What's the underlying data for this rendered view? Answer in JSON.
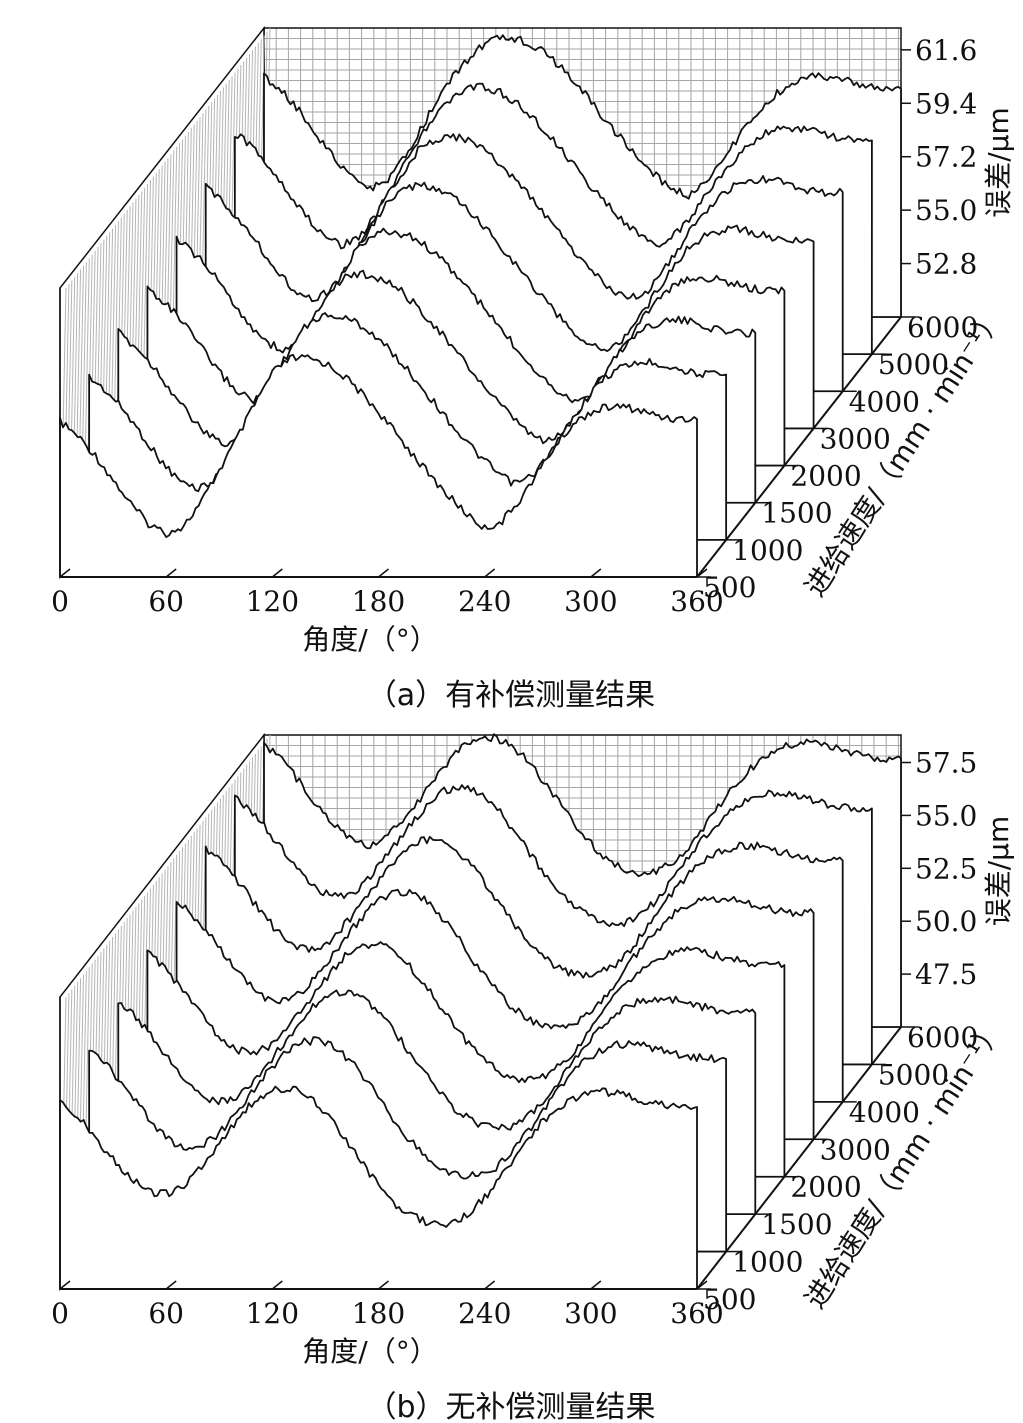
{
  "chart_data": [
    {
      "type": "line",
      "chart_style": "3d-waterfall",
      "caption": "（a）有补偿测量结果",
      "xlabel": "角度/（°）",
      "ylabel": "误差/μm",
      "zlabel": "进给速度/（mm · min⁻¹）",
      "x_ticks": [
        "0",
        "60",
        "120",
        "180",
        "240",
        "300",
        "360"
      ],
      "y_ticks": [
        "52.8",
        "55.0",
        "57.2",
        "59.4",
        "61.6"
      ],
      "z_ticks": [
        "500",
        "1000",
        "1500",
        "2000",
        "3000",
        "4000",
        "5000",
        "6000"
      ],
      "xlim": [
        0,
        360
      ],
      "ylim": [
        50.6,
        62.5
      ],
      "x": [
        0,
        10,
        20,
        30,
        40,
        50,
        60,
        70,
        80,
        90,
        100,
        110,
        120,
        130,
        140,
        150,
        160,
        170,
        180,
        190,
        200,
        210,
        220,
        230,
        240,
        250,
        260,
        270,
        280,
        290,
        300,
        310,
        320,
        330,
        340,
        350,
        360
      ],
      "series": [
        {
          "name": "500",
          "values": [
            57.0,
            56.4,
            55.6,
            54.6,
            53.6,
            52.8,
            52.4,
            52.7,
            53.7,
            55.0,
            56.3,
            57.7,
            59.0,
            59.6,
            59.6,
            59.4,
            58.9,
            58.2,
            57.4,
            56.5,
            55.6,
            54.7,
            53.9,
            53.2,
            52.6,
            52.9,
            53.8,
            54.9,
            56.0,
            56.9,
            57.4,
            57.6,
            57.6,
            57.4,
            57.2,
            57.1,
            57.1
          ]
        },
        {
          "name": "1000",
          "values": [
            57.3,
            56.7,
            55.9,
            54.9,
            53.9,
            53.1,
            52.7,
            53.0,
            54.0,
            55.3,
            56.6,
            58.0,
            59.2,
            59.8,
            59.8,
            59.6,
            59.1,
            58.4,
            57.6,
            56.7,
            55.8,
            54.9,
            54.1,
            53.4,
            52.9,
            53.2,
            54.1,
            55.2,
            56.3,
            57.2,
            57.7,
            57.9,
            57.9,
            57.7,
            57.5,
            57.4,
            57.4
          ]
        },
        {
          "name": "1500",
          "values": [
            57.6,
            57.0,
            56.2,
            55.2,
            54.2,
            53.4,
            53.0,
            53.3,
            54.3,
            55.6,
            56.9,
            58.2,
            59.4,
            60.0,
            60.0,
            59.8,
            59.3,
            58.6,
            57.8,
            56.9,
            56.0,
            55.1,
            54.3,
            53.6,
            53.1,
            53.4,
            54.3,
            55.4,
            56.5,
            57.4,
            57.9,
            58.1,
            58.1,
            57.9,
            57.7,
            57.6,
            57.6
          ]
        },
        {
          "name": "2000",
          "values": [
            57.9,
            57.3,
            56.5,
            55.5,
            54.5,
            53.7,
            53.3,
            53.6,
            54.6,
            55.9,
            57.2,
            58.5,
            59.7,
            60.2,
            60.2,
            60.0,
            59.5,
            58.8,
            58.0,
            57.1,
            56.2,
            55.3,
            54.5,
            53.8,
            53.3,
            53.6,
            54.5,
            55.6,
            56.7,
            57.6,
            58.1,
            58.3,
            58.3,
            58.1,
            57.9,
            57.8,
            57.8
          ]
        },
        {
          "name": "3000",
          "values": [
            58.4,
            57.8,
            57.0,
            56.0,
            55.0,
            54.2,
            53.8,
            54.1,
            55.1,
            56.4,
            57.7,
            58.9,
            60.0,
            60.5,
            60.6,
            60.4,
            59.9,
            59.2,
            58.4,
            57.5,
            56.6,
            55.7,
            54.9,
            54.2,
            53.8,
            54.1,
            55.0,
            56.1,
            57.2,
            58.1,
            58.6,
            58.8,
            58.8,
            58.6,
            58.4,
            58.3,
            58.3
          ]
        },
        {
          "name": "4000",
          "values": [
            59.0,
            58.4,
            57.6,
            56.6,
            55.6,
            54.8,
            54.4,
            54.7,
            55.7,
            57.0,
            58.3,
            59.5,
            60.5,
            61.0,
            61.1,
            60.9,
            60.4,
            59.7,
            58.9,
            58.0,
            57.1,
            56.2,
            55.4,
            54.7,
            54.4,
            54.8,
            55.7,
            56.8,
            57.8,
            58.6,
            59.1,
            59.3,
            59.3,
            59.1,
            58.9,
            58.8,
            58.8
          ]
        },
        {
          "name": "5000",
          "values": [
            59.7,
            59.1,
            58.3,
            57.3,
            56.3,
            55.5,
            55.1,
            55.4,
            56.4,
            57.7,
            59.0,
            60.1,
            61.0,
            61.5,
            61.6,
            61.4,
            60.9,
            60.2,
            59.4,
            58.5,
            57.6,
            56.8,
            56.0,
            55.4,
            55.1,
            55.6,
            56.5,
            57.5,
            58.4,
            59.2,
            59.7,
            59.9,
            59.9,
            59.7,
            59.5,
            59.4,
            59.4
          ]
        },
        {
          "name": "6000",
          "values": [
            60.5,
            59.9,
            59.1,
            58.1,
            57.1,
            56.3,
            55.9,
            56.2,
            57.2,
            58.5,
            59.8,
            60.8,
            61.6,
            62.0,
            62.1,
            61.9,
            61.4,
            60.7,
            59.9,
            59.0,
            58.1,
            57.3,
            56.5,
            55.9,
            55.6,
            56.2,
            57.2,
            58.2,
            59.1,
            59.8,
            60.3,
            60.5,
            60.5,
            60.3,
            60.1,
            60.0,
            60.0
          ]
        }
      ]
    },
    {
      "type": "line",
      "chart_style": "3d-waterfall",
      "caption": "（b）无补偿测量结果",
      "xlabel": "角度/（°）",
      "ylabel": "误差/μm",
      "zlabel": "进给速度/（mm · min⁻¹）",
      "x_ticks": [
        "0",
        "60",
        "120",
        "180",
        "240",
        "300",
        "360"
      ],
      "y_ticks": [
        "47.5",
        "50.0",
        "52.5",
        "55.0",
        "57.5"
      ],
      "z_ticks": [
        "500",
        "1000",
        "1500",
        "2000",
        "3000",
        "4000",
        "5000",
        "6000"
      ],
      "xlim": [
        0,
        360
      ],
      "ylim": [
        45.0,
        58.8
      ],
      "x": [
        0,
        10,
        20,
        30,
        40,
        50,
        60,
        70,
        80,
        90,
        100,
        110,
        120,
        130,
        140,
        150,
        160,
        170,
        180,
        190,
        200,
        210,
        220,
        230,
        240,
        250,
        260,
        270,
        280,
        290,
        300,
        310,
        320,
        330,
        340,
        350,
        360
      ],
      "series": [
        {
          "name": "500",
          "values": [
            54.0,
            53.2,
            52.2,
            51.1,
            50.2,
            49.6,
            49.5,
            49.9,
            50.8,
            51.9,
            53.0,
            53.9,
            54.4,
            54.5,
            54.1,
            53.3,
            52.2,
            51.0,
            49.9,
            49.0,
            48.4,
            48.1,
            48.1,
            48.5,
            49.3,
            50.4,
            51.6,
            52.7,
            53.5,
            54.0,
            54.3,
            54.3,
            54.1,
            53.9,
            53.7,
            53.6,
            53.6
          ]
        },
        {
          "name": "1000",
          "values": [
            54.6,
            53.8,
            52.8,
            51.7,
            50.7,
            50.0,
            49.9,
            50.3,
            51.2,
            52.3,
            53.4,
            54.3,
            54.9,
            55.0,
            54.6,
            53.8,
            52.7,
            51.5,
            50.4,
            49.5,
            48.9,
            48.6,
            48.6,
            49.0,
            49.8,
            50.9,
            52.1,
            53.2,
            54.0,
            54.5,
            54.8,
            54.8,
            54.6,
            54.4,
            54.2,
            54.1,
            54.1
          ]
        },
        {
          "name": "1500",
          "values": [
            55.1,
            54.3,
            53.3,
            52.2,
            51.2,
            50.5,
            50.3,
            50.7,
            51.6,
            52.7,
            53.8,
            54.8,
            55.4,
            55.5,
            55.1,
            54.3,
            53.2,
            52.0,
            50.9,
            50.0,
            49.4,
            49.1,
            49.1,
            49.5,
            50.3,
            51.4,
            52.6,
            53.6,
            54.4,
            54.9,
            55.2,
            55.2,
            55.0,
            54.8,
            54.6,
            54.5,
            54.5
          ]
        },
        {
          "name": "2000",
          "values": [
            55.6,
            54.8,
            53.8,
            52.7,
            51.7,
            51.0,
            50.8,
            51.2,
            52.1,
            53.2,
            54.3,
            55.3,
            55.9,
            56.0,
            55.6,
            54.8,
            53.7,
            52.5,
            51.4,
            50.5,
            49.9,
            49.6,
            49.6,
            50.0,
            50.8,
            51.9,
            53.1,
            54.1,
            54.9,
            55.4,
            55.7,
            55.7,
            55.5,
            55.3,
            55.1,
            55.0,
            55.0
          ]
        },
        {
          "name": "3000",
          "values": [
            56.3,
            55.5,
            54.5,
            53.4,
            52.4,
            51.7,
            51.5,
            51.9,
            52.8,
            53.9,
            55.0,
            56.0,
            56.6,
            56.7,
            56.3,
            55.5,
            54.4,
            53.2,
            52.1,
            51.2,
            50.6,
            50.3,
            50.3,
            50.7,
            51.5,
            52.6,
            53.8,
            54.8,
            55.6,
            56.1,
            56.4,
            56.4,
            56.2,
            56.0,
            55.8,
            55.7,
            55.7
          ]
        },
        {
          "name": "4000",
          "values": [
            57.0,
            56.2,
            55.2,
            54.1,
            53.1,
            52.4,
            52.2,
            52.6,
            53.5,
            54.6,
            55.7,
            56.7,
            57.3,
            57.4,
            57.0,
            56.2,
            55.1,
            53.9,
            52.8,
            51.9,
            51.3,
            51.0,
            51.0,
            51.4,
            52.2,
            53.3,
            54.5,
            55.5,
            56.3,
            56.8,
            57.1,
            57.1,
            56.9,
            56.7,
            56.5,
            56.4,
            56.4
          ]
        },
        {
          "name": "5000",
          "values": [
            57.7,
            56.9,
            55.9,
            54.8,
            53.8,
            53.1,
            52.9,
            53.3,
            54.2,
            55.3,
            56.4,
            57.4,
            58.0,
            58.1,
            57.7,
            56.9,
            55.8,
            54.6,
            53.5,
            52.6,
            52.0,
            51.7,
            51.7,
            52.1,
            52.9,
            54.0,
            55.2,
            56.2,
            57.0,
            57.5,
            57.8,
            57.8,
            57.6,
            57.4,
            57.2,
            57.1,
            57.1
          ]
        },
        {
          "name": "6000",
          "values": [
            58.4,
            57.6,
            56.6,
            55.5,
            54.5,
            53.8,
            53.6,
            54.0,
            54.9,
            56.0,
            57.1,
            58.1,
            58.6,
            58.7,
            58.3,
            57.5,
            56.4,
            55.2,
            54.1,
            53.2,
            52.6,
            52.3,
            52.3,
            52.7,
            53.5,
            54.6,
            55.8,
            56.8,
            57.6,
            58.1,
            58.4,
            58.4,
            58.2,
            58.0,
            57.8,
            57.7,
            57.7
          ]
        }
      ]
    }
  ]
}
